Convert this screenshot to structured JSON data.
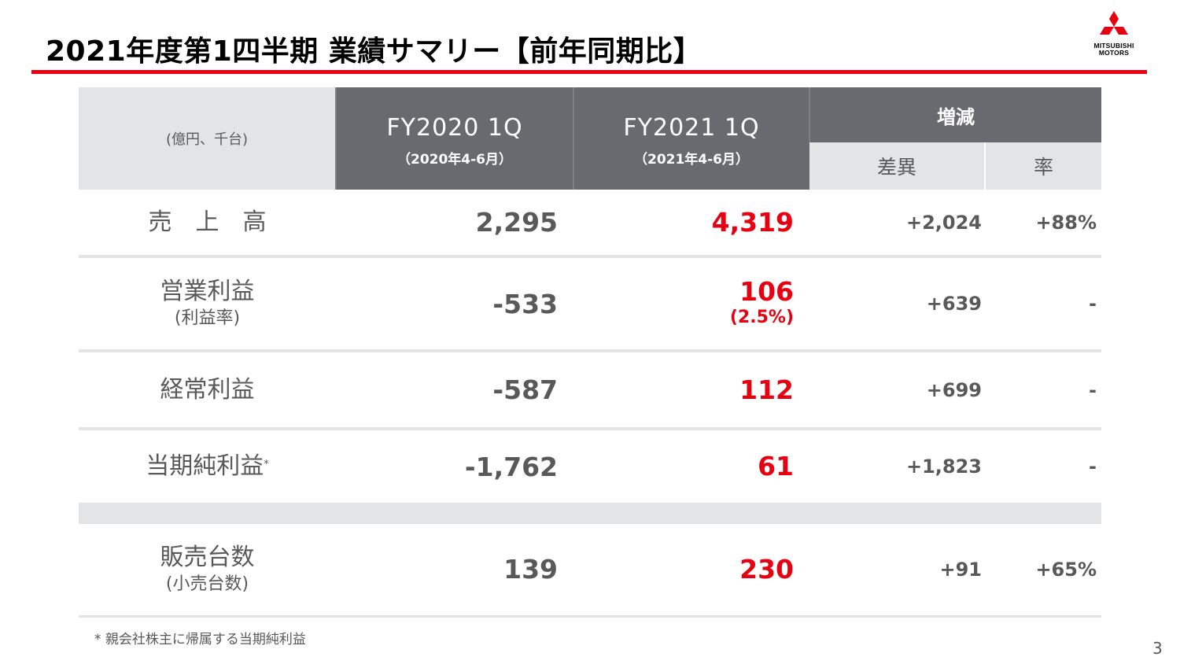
{
  "title": "2021年度第1四半期 業績サマリー【前年同期比】",
  "logo": {
    "line1": "MITSUBISHI",
    "line2": "MOTORS",
    "color": "#e60012"
  },
  "table": {
    "unit": "(億円、千台)",
    "col_prev": {
      "label": "FY2020 1Q",
      "period": "（2020年4-6月）"
    },
    "col_cur": {
      "label": "FY2021 1Q",
      "period": "（2021年4-6月）"
    },
    "col_change": {
      "label": "増減",
      "diff": "差異",
      "rate": "率"
    },
    "rows": [
      {
        "label": "売　上　高",
        "sub": "",
        "prev": "2,295",
        "cur": "4,319",
        "cur_sub": "",
        "diff": "+2,024",
        "rate": "+88%"
      },
      {
        "label": "営業利益",
        "sub": "(利益率)",
        "prev": "-533",
        "cur": "106",
        "cur_sub": "(2.5%)",
        "diff": "+639",
        "rate": "-"
      },
      {
        "label": "経常利益",
        "sub": "",
        "prev": "-587",
        "cur": "112",
        "cur_sub": "",
        "diff": "+699",
        "rate": "-"
      },
      {
        "label": "当期純利益",
        "mark": "*",
        "sub": "",
        "prev": "-1,762",
        "cur": "61",
        "cur_sub": "",
        "diff": "+1,823",
        "rate": "-"
      },
      {
        "label": "販売台数",
        "sub": "(小売台数)",
        "prev": "139",
        "cur": "230",
        "cur_sub": "",
        "diff": "+91",
        "rate": "+65%"
      }
    ]
  },
  "footnote": "* 親会社株主に帰属する当期純利益",
  "page_number": "3",
  "colors": {
    "accent_red": "#e60012",
    "header_dark": "#686a6f",
    "header_light": "#e3e4e6",
    "text_gray": "#595959"
  }
}
